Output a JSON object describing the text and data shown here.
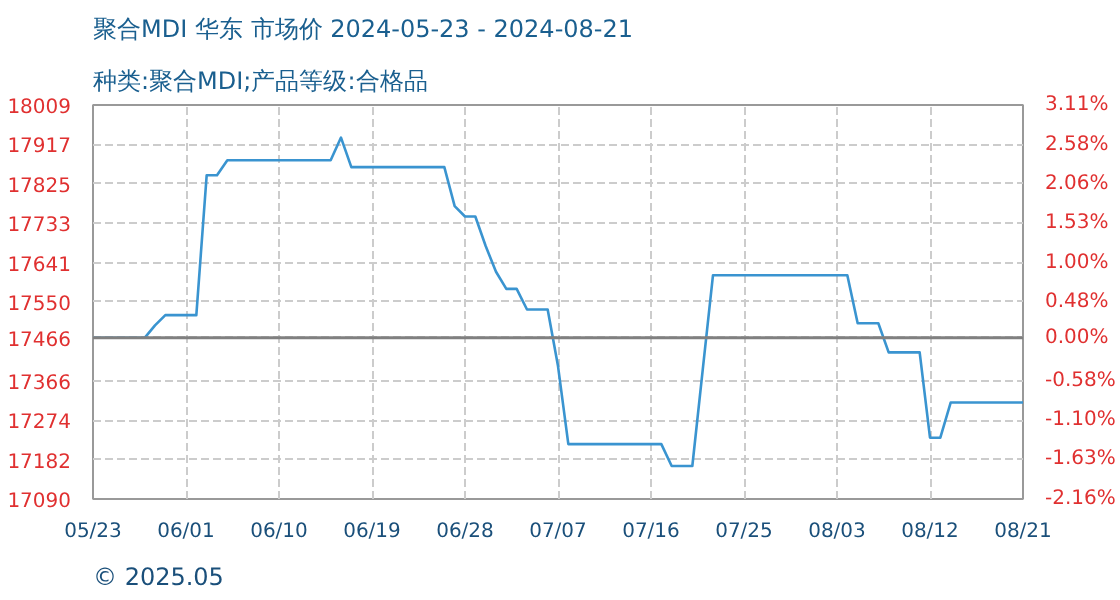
{
  "chart_data": {
    "type": "line",
    "title": "聚合MDI 华东 市场价 2024-05-23 - 2024-08-21",
    "subtitle": "种类:聚合MDI;产品等级:合格品",
    "annotations": [
      "© 2025.05"
    ],
    "x": [
      "2024-05-23",
      "2024-05-28",
      "2024-05-29",
      "2024-05-30",
      "2024-06-02",
      "2024-06-03",
      "2024-06-04",
      "2024-06-05",
      "2024-06-15",
      "2024-06-16",
      "2024-06-17",
      "2024-06-26",
      "2024-06-27",
      "2024-06-28",
      "2024-06-29",
      "2024-06-30",
      "2024-07-01",
      "2024-07-02",
      "2024-07-03",
      "2024-07-04",
      "2024-07-06",
      "2024-07-07",
      "2024-07-08",
      "2024-07-17",
      "2024-07-18",
      "2024-07-20",
      "2024-07-21",
      "2024-07-22",
      "2024-08-04",
      "2024-08-05",
      "2024-08-07",
      "2024-08-08",
      "2024-08-11",
      "2024-08-12",
      "2024-08-13",
      "2024-08-14",
      "2024-08-21"
    ],
    "series": [
      {
        "color": "#3a94d0",
        "values": [
          17466,
          17466,
          17495,
          17519,
          17519,
          17845,
          17845,
          17880,
          17880,
          17933,
          17864,
          17864,
          17773,
          17749,
          17749,
          17680,
          17620,
          17580,
          17580,
          17532,
          17532,
          17400,
          17218,
          17218,
          17167,
          17167,
          17390,
          17612,
          17612,
          17500,
          17500,
          17432,
          17432,
          17233,
          17233,
          17315,
          17315
        ]
      }
    ],
    "xlim": [
      "2024-05-23",
      "2024-08-21"
    ],
    "xticks": [
      {
        "value": "2024-05-23",
        "label": "05/23"
      },
      {
        "value": "2024-06-01",
        "label": "06/01"
      },
      {
        "value": "2024-06-10",
        "label": "06/10"
      },
      {
        "value": "2024-06-19",
        "label": "06/19"
      },
      {
        "value": "2024-06-28",
        "label": "06/28"
      },
      {
        "value": "2024-07-07",
        "label": "07/07"
      },
      {
        "value": "2024-07-16",
        "label": "07/16"
      },
      {
        "value": "2024-07-25",
        "label": "07/25"
      },
      {
        "value": "2024-08-03",
        "label": "08/03"
      },
      {
        "value": "2024-08-12",
        "label": "08/12"
      },
      {
        "value": "2024-08-21",
        "label": "08/21"
      }
    ],
    "ylim": [
      17090,
      18009
    ],
    "yticks": [
      17090,
      17182,
      17274,
      17366,
      17466,
      17550,
      17641,
      17733,
      17825,
      17917,
      18009
    ],
    "y2lim": [
      -2.16,
      3.11
    ],
    "y2ticks": [
      {
        "value": -2.16,
        "label": "-2.16%"
      },
      {
        "value": -1.63,
        "label": "-1.63%"
      },
      {
        "value": -1.1,
        "label": "-1.10%"
      },
      {
        "value": -0.58,
        "label": "-0.58%"
      },
      {
        "value": 0,
        "label": "0.00%"
      },
      {
        "value": 0.48,
        "label": "0.48%"
      },
      {
        "value": 1,
        "label": "1.00%"
      },
      {
        "value": 1.53,
        "label": "1.53%"
      },
      {
        "value": 2.06,
        "label": "2.06%"
      },
      {
        "value": 2.58,
        "label": "2.58%"
      },
      {
        "value": 3.11,
        "label": "3.11%"
      }
    ],
    "ref_lines": [
      {
        "axis": "y",
        "value": 17466,
        "color": "#808080"
      }
    ],
    "grid": true,
    "line_style": "solid",
    "marker": "none"
  }
}
